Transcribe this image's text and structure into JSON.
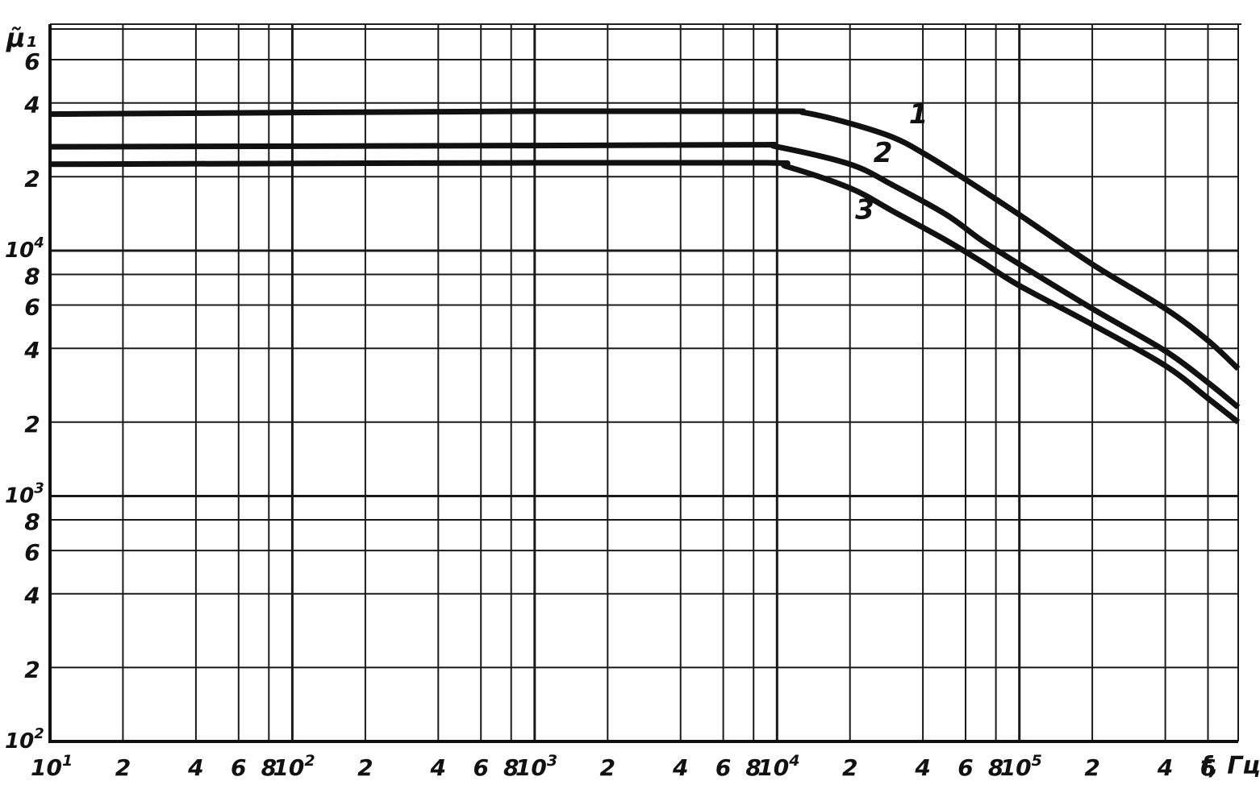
{
  "chart_data": {
    "type": "line",
    "title": "",
    "ylabel": "μ̃₁",
    "xlabel": "f, Гц",
    "x_scale": "log",
    "y_scale": "log",
    "xlim": [
      10,
      800000
    ],
    "ylim": [
      100,
      80000
    ],
    "grid": true,
    "legend": "none",
    "x_ticks": [
      {
        "value": 10,
        "base": "10",
        "exp": "1"
      },
      {
        "value": 20,
        "label": "2"
      },
      {
        "value": 40,
        "label": "4"
      },
      {
        "value": 60,
        "label": "6"
      },
      {
        "value": 80,
        "label": "8"
      },
      {
        "value": 100,
        "base": "10",
        "exp": "2"
      },
      {
        "value": 200,
        "label": "2"
      },
      {
        "value": 400,
        "label": "4"
      },
      {
        "value": 600,
        "label": "6"
      },
      {
        "value": 800,
        "label": "8"
      },
      {
        "value": 1000,
        "base": "10",
        "exp": "3"
      },
      {
        "value": 2000,
        "label": "2"
      },
      {
        "value": 4000,
        "label": "4"
      },
      {
        "value": 6000,
        "label": "6"
      },
      {
        "value": 8000,
        "label": "8"
      },
      {
        "value": 10000,
        "base": "10",
        "exp": "4"
      },
      {
        "value": 20000,
        "label": "2"
      },
      {
        "value": 40000,
        "label": "4"
      },
      {
        "value": 60000,
        "label": "6"
      },
      {
        "value": 80000,
        "label": "8"
      },
      {
        "value": 100000,
        "base": "10",
        "exp": "5"
      },
      {
        "value": 200000,
        "label": "2"
      },
      {
        "value": 400000,
        "label": "4"
      },
      {
        "value": 600000,
        "label": "6"
      }
    ],
    "x_grid": [
      10,
      20,
      40,
      60,
      80,
      100,
      200,
      400,
      600,
      800,
      1000,
      2000,
      4000,
      6000,
      8000,
      10000,
      20000,
      40000,
      60000,
      80000,
      100000,
      200000,
      400000,
      600000,
      800000
    ],
    "y_ticks": [
      {
        "value": 100,
        "base": "10",
        "exp": "2"
      },
      {
        "value": 200,
        "label": "2"
      },
      {
        "value": 400,
        "label": "4"
      },
      {
        "value": 600,
        "label": "6"
      },
      {
        "value": 800,
        "label": "8"
      },
      {
        "value": 1000,
        "base": "10",
        "exp": "3"
      },
      {
        "value": 2000,
        "label": "2"
      },
      {
        "value": 4000,
        "label": "4"
      },
      {
        "value": 6000,
        "label": "6"
      },
      {
        "value": 8000,
        "label": "8"
      },
      {
        "value": 10000,
        "base": "10",
        "exp": "4"
      },
      {
        "value": 20000,
        "label": "2"
      },
      {
        "value": 40000,
        "label": "4"
      },
      {
        "value": 60000,
        "label": "6"
      }
    ],
    "y_grid": [
      100,
      200,
      400,
      600,
      800,
      1000,
      2000,
      4000,
      6000,
      8000,
      10000,
      20000,
      40000,
      60000,
      80000
    ],
    "series": [
      {
        "name": "1",
        "color": "#111111",
        "points": [
          [
            10,
            36000
          ],
          [
            1000,
            37000
          ],
          [
            10000,
            37000
          ],
          [
            13000,
            36500
          ],
          [
            20000,
            33000
          ],
          [
            30000,
            29000
          ],
          [
            40000,
            25000
          ],
          [
            60000,
            19500
          ],
          [
            100000,
            14000
          ],
          [
            200000,
            8800
          ],
          [
            400000,
            5800
          ],
          [
            600000,
            4300
          ],
          [
            800000,
            3300
          ]
        ]
      },
      {
        "name": "2",
        "color": "#111111",
        "points": [
          [
            10,
            26500
          ],
          [
            1000,
            26800
          ],
          [
            8000,
            27000
          ],
          [
            10000,
            26500
          ],
          [
            20000,
            22500
          ],
          [
            30000,
            18500
          ],
          [
            50000,
            14000
          ],
          [
            70000,
            11000
          ],
          [
            100000,
            8800
          ],
          [
            200000,
            5800
          ],
          [
            400000,
            3900
          ],
          [
            600000,
            2900
          ],
          [
            800000,
            2300
          ]
        ]
      },
      {
        "name": "3",
        "color": "#111111",
        "points": [
          [
            10,
            22500
          ],
          [
            1000,
            22800
          ],
          [
            9000,
            22800
          ],
          [
            11000,
            22000
          ],
          [
            20000,
            18000
          ],
          [
            30000,
            14500
          ],
          [
            50000,
            11000
          ],
          [
            70000,
            9000
          ],
          [
            100000,
            7200
          ],
          [
            200000,
            5000
          ],
          [
            400000,
            3400
          ],
          [
            600000,
            2500
          ],
          [
            800000,
            2000
          ]
        ]
      }
    ],
    "series_labels": [
      {
        "text": "1",
        "x": 35000,
        "y": 33000
      },
      {
        "text": "2",
        "x": 25000,
        "y": 23000
      },
      {
        "text": "3",
        "x": 21000,
        "y": 13500
      }
    ]
  }
}
